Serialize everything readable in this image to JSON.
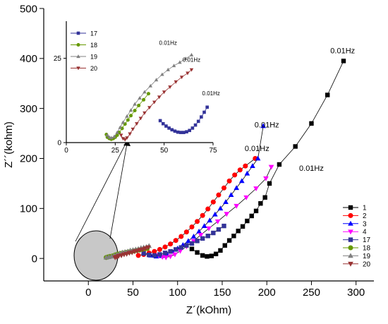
{
  "chart_data": [
    {
      "type": "scatter",
      "title": "",
      "xlabel": "Z´(kOhm)",
      "ylabel": "Z´´(kohm)",
      "xlim": [
        -50,
        320
      ],
      "ylim": [
        -45,
        500
      ],
      "xticks": [
        0,
        50,
        100,
        150,
        200,
        250,
        300
      ],
      "yticks": [
        0,
        100,
        200,
        300,
        400,
        500
      ],
      "legend_position": "bottom-right",
      "series": [
        {
          "name": "1",
          "color": "#000000",
          "marker": "square",
          "x": [
            116,
            122,
            128,
            133,
            138,
            143,
            148,
            153,
            158,
            163,
            168,
            173,
            178,
            183,
            188,
            193,
            198,
            203,
            214,
            232,
            250,
            268,
            286
          ],
          "y": [
            19,
            12,
            6,
            4,
            5,
            9,
            16,
            26,
            36,
            45,
            55,
            64,
            75,
            85,
            95,
            110,
            122,
            150,
            188,
            224,
            270,
            327,
            395
          ]
        },
        {
          "name": "2",
          "color": "#ff0000",
          "marker": "circle",
          "x": [
            56,
            62,
            68,
            74,
            80,
            86,
            92,
            98,
            104,
            110,
            116,
            122,
            128,
            134,
            140,
            146,
            152,
            158,
            164,
            170,
            176,
            187
          ],
          "y": [
            6,
            8,
            11,
            14,
            18,
            23,
            29,
            36,
            44,
            53,
            63,
            74,
            86,
            99,
            113,
            127,
            141,
            155,
            167,
            177,
            185,
            200
          ]
        },
        {
          "name": "3",
          "color": "#0000ff",
          "marker": "triangle-up",
          "x": [
            70,
            76,
            82,
            88,
            94,
            100,
            106,
            112,
            118,
            124,
            130,
            136,
            142,
            148,
            154,
            160,
            166,
            172,
            178,
            184,
            190,
            196
          ],
          "y": [
            6,
            4,
            5,
            9,
            14,
            20,
            27,
            35,
            44,
            54,
            65,
            76,
            88,
            100,
            113,
            127,
            141,
            155,
            170,
            185,
            200,
            265
          ]
        },
        {
          "name": "4",
          "color": "#ff00ff",
          "marker": "triangle-down",
          "x": [
            79,
            83,
            87,
            92,
            97,
            103,
            110,
            118,
            126,
            135,
            145,
            155,
            166,
            177,
            188,
            199,
            205
          ],
          "y": [
            6,
            3,
            2,
            4,
            8,
            15,
            24,
            35,
            47,
            60,
            74,
            89,
            105,
            122,
            140,
            160,
            183
          ]
        },
        {
          "name": "17",
          "color": "#333399",
          "marker": "square",
          "x": [
            62,
            68,
            74,
            80,
            86,
            92,
            98,
            104,
            110,
            116,
            122,
            128,
            134,
            140,
            146,
            152
          ],
          "y": [
            10,
            7,
            6,
            8,
            11,
            14,
            18,
            22,
            26,
            30,
            35,
            40,
            45,
            51,
            58,
            65
          ]
        },
        {
          "name": "18",
          "color": "#669900",
          "marker": "circle",
          "x": [
            20,
            22,
            24,
            27,
            30,
            33,
            36,
            39,
            42,
            45,
            48,
            51,
            54,
            57,
            60,
            63,
            66
          ],
          "y": [
            2,
            3,
            4,
            5,
            7,
            9,
            10,
            11,
            12,
            13,
            14,
            15,
            16,
            17,
            18,
            19,
            20
          ]
        },
        {
          "name": "19",
          "color": "#808080",
          "marker": "triangle-up",
          "x": [
            20,
            23,
            26,
            29,
            32,
            35,
            38,
            41,
            44,
            47,
            50,
            53,
            56,
            59,
            62,
            65,
            68
          ],
          "y": [
            2,
            3,
            4,
            6,
            8,
            10,
            12,
            13,
            14,
            16,
            17,
            18,
            19,
            21,
            22,
            23,
            25
          ]
        },
        {
          "name": "20",
          "color": "#993333",
          "marker": "triangle-down",
          "x": [
            30,
            32,
            34,
            37,
            40,
            43,
            46,
            49,
            52,
            55,
            58,
            61,
            64,
            67
          ],
          "y": [
            2,
            3,
            5,
            6,
            8,
            9,
            11,
            12,
            14,
            15,
            17,
            18,
            20,
            22
          ]
        }
      ],
      "annotations": [
        {
          "text": "0.01Hz",
          "x": 285,
          "y": 410
        },
        {
          "text": "0.01Hz",
          "x": 200,
          "y": 262
        },
        {
          "text": "0.01Hz",
          "x": 189,
          "y": 215
        },
        {
          "text": "0.01Hz",
          "x": 250,
          "y": 175
        }
      ]
    },
    {
      "type": "scatter",
      "title": "",
      "xlabel": "",
      "ylabel": "",
      "xlim": [
        0,
        75
      ],
      "ylim": [
        0,
        36
      ],
      "xticks": [
        0,
        25,
        50,
        75
      ],
      "yticks": [
        0,
        25
      ],
      "legend_position": "top-left",
      "series": [
        {
          "name": "17",
          "color": "#333399",
          "marker": "square",
          "x": [
            48,
            49.5,
            51,
            52.5,
            54,
            55.5,
            57,
            58.5,
            60,
            61.5,
            63,
            64.5,
            66,
            67.5,
            69,
            70.5,
            72
          ],
          "y": [
            6.5,
            5.6,
            4.9,
            4.3,
            3.8,
            3.4,
            3.1,
            3.0,
            3.0,
            3.2,
            3.6,
            4.3,
            5.2,
            6.3,
            7.6,
            9.0,
            10.5
          ]
        },
        {
          "name": "18",
          "color": "#669900",
          "marker": "circle",
          "x": [
            20.5,
            21,
            22,
            23,
            24,
            25,
            26,
            27,
            28.5,
            30,
            31.5,
            33,
            35,
            37,
            39.5,
            42
          ],
          "y": [
            2.4,
            1.6,
            1.2,
            1.0,
            1.2,
            1.6,
            2.2,
            3.0,
            4.2,
            5.5,
            6.7,
            8.0,
            9.5,
            11.0,
            12.7,
            14.5
          ]
        },
        {
          "name": "19",
          "color": "#808080",
          "marker": "triangle-up",
          "x": [
            21,
            22,
            23,
            24.5,
            26,
            27.5,
            29,
            31,
            33,
            35,
            37.5,
            40,
            43,
            46,
            49,
            52,
            55,
            58,
            61,
            64
          ],
          "y": [
            2.2,
            1.6,
            1.4,
            1.8,
            3.0,
            4.5,
            6.0,
            7.8,
            9.6,
            11.4,
            13.2,
            15.0,
            16.8,
            18.6,
            20.2,
            21.6,
            22.8,
            23.8,
            24.9,
            26.0
          ]
        },
        {
          "name": "20",
          "color": "#993333",
          "marker": "triangle-down",
          "x": [
            28,
            29,
            30,
            31,
            32.5,
            34,
            36,
            38,
            40,
            42.5,
            45,
            47.5,
            50,
            53,
            56,
            59,
            62,
            64
          ],
          "y": [
            2.2,
            1.2,
            0.9,
            1.4,
            2.6,
            4.0,
            5.6,
            7.2,
            8.8,
            10.4,
            12.0,
            13.5,
            15.0,
            16.5,
            18.0,
            19.4,
            20.6,
            21.6
          ]
        }
      ],
      "annotations": [
        {
          "text": "0.01Hz",
          "x": 52,
          "y": 29
        },
        {
          "text": "0.01Hz",
          "x": 64,
          "y": 24
        },
        {
          "text": "0.01Hz",
          "x": 74,
          "y": 14
        }
      ]
    }
  ]
}
